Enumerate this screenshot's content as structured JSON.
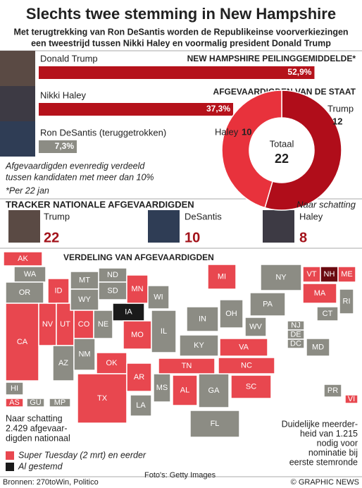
{
  "header": {
    "title": "Slechts twee stemming in New Hampshire",
    "subtitle": [
      "Met terugtrekking van Ron DeSantis worden de Republikeinse voorverkiezingen",
      "een tweestrijd tussen Nikki Haley en voormalig president Donald Trump"
    ]
  },
  "chart_data": [
    {
      "type": "bar",
      "title": "NEW HAMPSHIRE  PEILINGGEMIDDELDE*",
      "categories": [
        "Donald Trump",
        "Nikki Haley",
        "Ron DeSantis (teruggetrokken)"
      ],
      "values": [
        52.9,
        37.3,
        7.3
      ],
      "value_labels": [
        "52,9%",
        "37,3%",
        "7,3%"
      ],
      "colors": [
        "#b5121b",
        "#b5121b",
        "#8c8c84"
      ],
      "notes": [
        "Afgevaardigden evenredig verdeeld",
        "tussen kandidaten met meer dan 10%",
        "*Per 22 jan"
      ]
    },
    {
      "type": "pie",
      "donut": true,
      "title": "AFGEVAARDIGDEN VAN DE STAAT",
      "categories": [
        "Trump",
        "Haley"
      ],
      "values": [
        12,
        10
      ],
      "colors": [
        "#b00d1a",
        "#e8323c"
      ],
      "center_label": "Totaal",
      "total": 22
    }
  ],
  "tracker": {
    "title": "TRACKER NATIONALE AFGEVAARDIGDEN",
    "note": "Naar schatting",
    "candidates": [
      {
        "name": "Trump",
        "delegates": 22
      },
      {
        "name": "DeSantis",
        "delegates": 10
      },
      {
        "name": "Haley",
        "delegates": 8
      }
    ]
  },
  "map": {
    "title": "VERDELING VAN AFGEVAARDIGDEN",
    "states": [
      {
        "name": "AK",
        "color": "#e8474f"
      },
      {
        "name": "WA",
        "color": "#8c8c84"
      },
      {
        "name": "OR",
        "color": "#8c8c84"
      },
      {
        "name": "CA",
        "color": "#e8474f"
      },
      {
        "name": "NV",
        "color": "#e8474f"
      },
      {
        "name": "ID",
        "color": "#e8474f"
      },
      {
        "name": "UT",
        "color": "#e8474f"
      },
      {
        "name": "AZ",
        "color": "#8c8c84"
      },
      {
        "name": "MT",
        "color": "#8c8c84"
      },
      {
        "name": "WY",
        "color": "#8c8c84"
      },
      {
        "name": "CO",
        "color": "#e8474f"
      },
      {
        "name": "NM",
        "color": "#8c8c84"
      },
      {
        "name": "ND",
        "color": "#8c8c84"
      },
      {
        "name": "SD",
        "color": "#8c8c84"
      },
      {
        "name": "NE",
        "color": "#8c8c84"
      },
      {
        "name": "IA",
        "color": "#1a1a1a"
      },
      {
        "name": "OK",
        "color": "#e8474f"
      },
      {
        "name": "TX",
        "color": "#e8474f"
      },
      {
        "name": "MN",
        "color": "#e8474f"
      },
      {
        "name": "WI",
        "color": "#8c8c84"
      },
      {
        "name": "MO",
        "color": "#e8474f"
      },
      {
        "name": "AR",
        "color": "#e8474f"
      },
      {
        "name": "LA",
        "color": "#8c8c84"
      },
      {
        "name": "MS",
        "color": "#8c8c84"
      },
      {
        "name": "AL",
        "color": "#e8474f"
      },
      {
        "name": "GA",
        "color": "#8c8c84"
      },
      {
        "name": "FL",
        "color": "#8c8c84"
      },
      {
        "name": "IL",
        "color": "#8c8c84"
      },
      {
        "name": "IN",
        "color": "#8c8c84"
      },
      {
        "name": "OH",
        "color": "#8c8c84"
      },
      {
        "name": "MI",
        "color": "#e8474f"
      },
      {
        "name": "KY",
        "color": "#8c8c84"
      },
      {
        "name": "TN",
        "color": "#e8474f"
      },
      {
        "name": "VA",
        "color": "#e8474f"
      },
      {
        "name": "NC",
        "color": "#e8474f"
      },
      {
        "name": "SC",
        "color": "#e8474f"
      },
      {
        "name": "WV",
        "color": "#8c8c84"
      },
      {
        "name": "PA",
        "color": "#8c8c84"
      },
      {
        "name": "NY",
        "color": "#8c8c84"
      },
      {
        "name": "NJ",
        "color": "#8c8c84"
      },
      {
        "name": "DE",
        "color": "#8c8c84"
      },
      {
        "name": "DC",
        "color": "#8c8c84"
      },
      {
        "name": "MD",
        "color": "#8c8c84"
      },
      {
        "name": "CT",
        "color": "#8c8c84"
      },
      {
        "name": "RI",
        "color": "#8c8c84"
      },
      {
        "name": "MA",
        "color": "#e8474f"
      },
      {
        "name": "VT",
        "color": "#e8474f"
      },
      {
        "name": "NH",
        "color": "#6b0a10"
      },
      {
        "name": "ME",
        "color": "#e8474f"
      },
      {
        "name": "HI",
        "color": "#8c8c84"
      },
      {
        "name": "AS",
        "color": "#e8474f"
      },
      {
        "name": "GU",
        "color": "#8c8c84"
      },
      {
        "name": "MP",
        "color": "#8c8c84"
      },
      {
        "name": "PR",
        "color": "#8c8c84"
      },
      {
        "name": "VI",
        "color": "#e8474f"
      }
    ],
    "left_note": [
      "Naar schatting",
      "2.429 afgevaar-",
      "digden nationaal"
    ],
    "right_note": [
      "Duidelijke meerder-",
      "heid van 1.215",
      "nodig voor",
      "nominatie bij",
      "eerste stemronde"
    ],
    "legend": [
      {
        "label": "Super Tuesday (2 mrt) en eerder",
        "color": "#e8474f"
      },
      {
        "label": "Al gestemd",
        "color": "#1a1a1a"
      }
    ]
  },
  "footer": {
    "sources": "Bronnen: 270toWin, Politico",
    "photos": "Foto's: Getty Images",
    "credit": "© GRAPHIC NEWS"
  }
}
